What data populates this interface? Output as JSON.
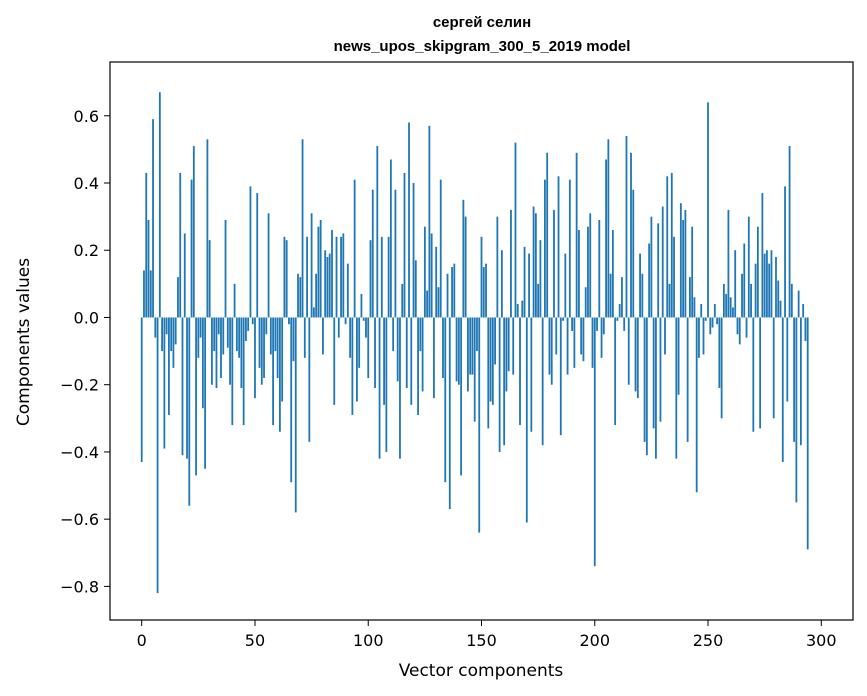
{
  "chart_data": {
    "type": "bar",
    "title": "сергей селин",
    "subtitle": "news_upos_skipgram_300_5_2019 model",
    "xlabel": "Vector components",
    "ylabel": "Components values",
    "xlim": [
      -14,
      314
    ],
    "ylim": [
      -0.9,
      0.76
    ],
    "xticks": [
      0,
      50,
      100,
      150,
      200,
      250,
      300
    ],
    "xtick_labels": [
      "0",
      "50",
      "100",
      "150",
      "200",
      "250",
      "300"
    ],
    "yticks": [
      -0.8,
      -0.6,
      -0.4,
      -0.2,
      0.0,
      0.2,
      0.4,
      0.6
    ],
    "ytick_labels": [
      "−0.8",
      "−0.6",
      "−0.4",
      "−0.2",
      "0.0",
      "0.2",
      "0.4",
      "0.6"
    ],
    "bar_color": "#1f77b4",
    "grid": false,
    "legend": "none",
    "values": [
      -0.43,
      0.14,
      0.43,
      0.29,
      0.14,
      0.59,
      -0.06,
      -0.82,
      0.67,
      -0.1,
      -0.39,
      -0.05,
      -0.29,
      -0.1,
      -0.15,
      -0.08,
      0.12,
      0.43,
      -0.41,
      0.25,
      -0.42,
      -0.56,
      0.41,
      0.51,
      -0.47,
      -0.12,
      -0.06,
      -0.27,
      -0.45,
      0.53,
      0.23,
      -0.2,
      -0.1,
      -0.21,
      -0.05,
      -0.18,
      -0.11,
      0.29,
      -0.09,
      -0.2,
      -0.32,
      0.1,
      -0.1,
      -0.12,
      -0.21,
      -0.32,
      -0.07,
      -0.04,
      0.39,
      -0.02,
      -0.24,
      0.37,
      -0.15,
      -0.2,
      -0.18,
      -0.05,
      0.31,
      -0.11,
      -0.32,
      -0.1,
      -0.18,
      -0.34,
      -0.25,
      0.24,
      0.23,
      -0.02,
      -0.49,
      -0.13,
      -0.58,
      0.13,
      0.12,
      0.53,
      -0.12,
      0.24,
      -0.37,
      0.31,
      0.03,
      0.13,
      0.27,
      0.29,
      -0.11,
      0.2,
      0.18,
      0.19,
      0.26,
      -0.26,
      0.24,
      -0.06,
      0.24,
      0.25,
      -0.02,
      0.16,
      -0.12,
      -0.29,
      0.41,
      -0.25,
      -0.15,
      0.07,
      -0.01,
      -0.06,
      -0.18,
      0.23,
      0.38,
      -0.21,
      0.51,
      -0.42,
      0.24,
      -0.26,
      -0.4,
      0.24,
      0.47,
      -0.1,
      0.38,
      -0.19,
      -0.42,
      0.1,
      0.43,
      -0.21,
      0.58,
      -0.26,
      0.4,
      0.17,
      -0.29,
      -0.1,
      -0.22,
      0.27,
      0.08,
      0.57,
      0.25,
      -0.24,
      0.21,
      0.09,
      0.41,
      -0.18,
      -0.49,
      0.13,
      -0.57,
      0.15,
      0.16,
      -0.19,
      -0.2,
      -0.47,
      0.35,
      0.3,
      -0.22,
      -0.17,
      -0.17,
      -0.31,
      -0.1,
      -0.64,
      0.24,
      0.15,
      0.16,
      -0.33,
      -0.25,
      -0.26,
      -0.14,
      0.3,
      -0.4,
      0.2,
      -0.38,
      -0.22,
      -0.16,
      0.32,
      -0.17,
      0.52,
      0.04,
      -0.32,
      0.05,
      0.21,
      -0.61,
      0.19,
      -0.34,
      0.33,
      0.31,
      0.1,
      0.23,
      -0.38,
      0.41,
      0.49,
      -0.17,
      -0.2,
      0.32,
      -0.11,
      0.42,
      -0.35,
      -0.01,
      0.19,
      -0.17,
      0.41,
      -0.04,
      -0.15,
      0.49,
      0.26,
      -0.11,
      -0.13,
      0.09,
      0.27,
      0.31,
      -0.15,
      -0.74,
      -0.04,
      0.29,
      -0.12,
      -0.05,
      0.47,
      0.53,
      0.13,
      0.26,
      -0.32,
      -0.01,
      0.04,
      0.12,
      -0.04,
      0.54,
      -0.2,
      0.49,
      0.38,
      -0.22,
      -0.24,
      0.19,
      0.13,
      -0.37,
      -0.41,
      0.22,
      0.3,
      -0.33,
      -0.42,
      0.28,
      -0.31,
      0.33,
      -0.11,
      0.42,
      0.1,
      0.43,
      0.24,
      -0.42,
      -0.23,
      0.34,
      0.29,
      0.32,
      -0.37,
      0.12,
      0.27,
      0.06,
      -0.52,
      -0.12,
      0.04,
      -0.11,
      -0.01,
      0.64,
      -0.05,
      -0.03,
      0.04,
      -0.02,
      -0.21,
      -0.3,
      0.1,
      0.07,
      0.32,
      0.06,
      0.03,
      0.2,
      -0.05,
      -0.08,
      0.13,
      0.22,
      -0.06,
      0.3,
      0.1,
      -0.34,
      0.16,
      0.27,
      -0.33,
      0.37,
      0.19,
      0.2,
      0.16,
      0.2,
      -0.3,
      0.18,
      0.11,
      0.05,
      -0.43,
      0.39,
      -0.25,
      0.51,
      0.1,
      -0.37,
      -0.55,
      0.08,
      -0.38,
      0.04,
      -0.07,
      -0.69
    ]
  }
}
